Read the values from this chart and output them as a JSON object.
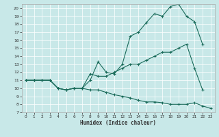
{
  "xlabel": "Humidex (Indice chaleur)",
  "bg_color": "#c8e8e8",
  "line_color": "#1a6b5a",
  "line1_y": [
    11,
    11,
    11,
    11,
    10,
    9.8,
    10,
    10,
    11,
    13.3,
    12,
    11.8,
    13,
    16.5,
    17,
    18.2,
    19.3,
    19,
    20.2,
    20.5,
    19,
    18.3,
    15.5,
    null
  ],
  "line2_y": [
    11,
    11,
    11,
    11,
    10,
    9.8,
    10,
    10,
    11.8,
    11.5,
    11.5,
    12,
    12.5,
    13,
    13,
    13.5,
    14,
    14.5,
    14.5,
    15,
    15.5,
    12.5,
    9.8,
    null
  ],
  "line3_y": [
    11,
    11,
    11,
    11,
    10,
    9.8,
    10,
    10,
    9.8,
    9.8,
    9.5,
    9.2,
    9,
    8.8,
    8.5,
    8.3,
    8.3,
    8.2,
    8,
    8,
    8,
    8.2,
    7.8,
    7.5
  ],
  "xlim": [
    -0.5,
    23.5
  ],
  "ylim": [
    7,
    20.5
  ],
  "yticks": [
    7,
    8,
    9,
    10,
    11,
    12,
    13,
    14,
    15,
    16,
    17,
    18,
    19,
    20
  ],
  "xticks": [
    0,
    1,
    2,
    3,
    4,
    5,
    6,
    7,
    8,
    9,
    10,
    11,
    12,
    13,
    14,
    15,
    16,
    17,
    18,
    19,
    20,
    21,
    22,
    23
  ]
}
